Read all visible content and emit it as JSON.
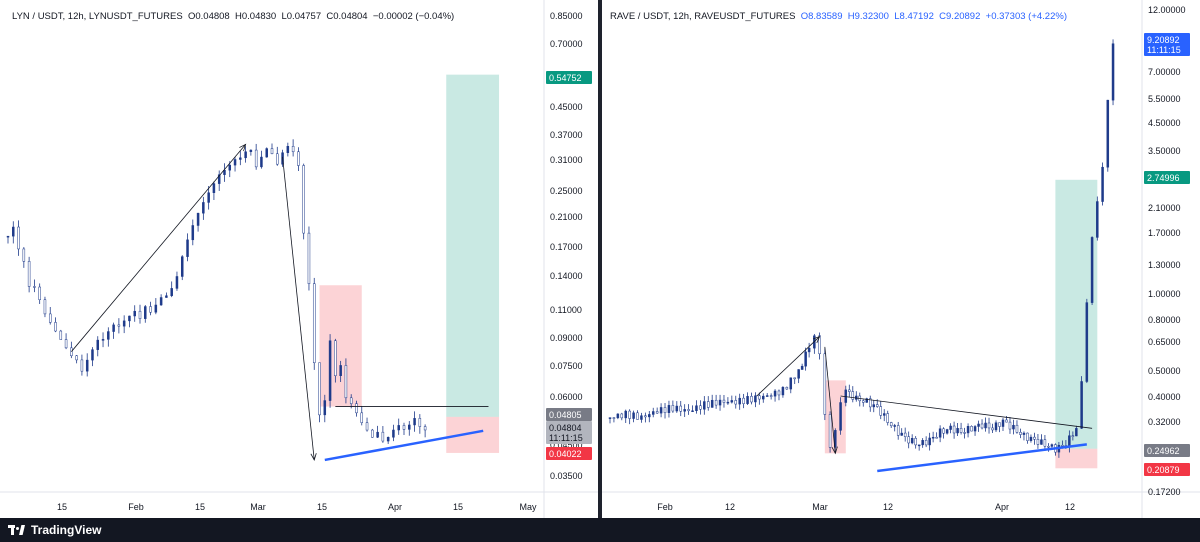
{
  "footer": {
    "brand": "TradingView"
  },
  "chart_data": [
    {
      "type": "candlestick",
      "header": {
        "symbol": "LYN / USDT, 12h, LYNUSDT_FUTURES",
        "open": "O0.04808",
        "high": "H0.04830",
        "low": "L0.04757",
        "close": "C0.04804",
        "change": "−0.00002 (−0.04%)"
      },
      "y_scale": "log",
      "ylim": [
        0.032,
        0.88
      ],
      "y_ticks": [
        "0.85000",
        "0.70000",
        "0.55000",
        "0.45000",
        "0.37000",
        "0.31000",
        "0.25000",
        "0.21000",
        "0.17000",
        "0.14000",
        "0.11000",
        "0.09000",
        "0.07500",
        "0.06000",
        "0.04500",
        "0.03500"
      ],
      "x_ticks": [
        "15",
        "Feb",
        "15",
        "Mar",
        "15",
        "Apr",
        "15",
        "May"
      ],
      "price_badges": [
        {
          "label": "0.54752",
          "color": "#089981"
        },
        {
          "label": "0.04805",
          "color": "#787b86"
        },
        {
          "label": "0.04804",
          "color": "#b2b5be",
          "sub": "11:11:15"
        },
        {
          "label": "0.04022",
          "color": "#f23645"
        }
      ],
      "price_path": [
        [
          0,
          0.19
        ],
        [
          1,
          0.2
        ],
        [
          2,
          0.17
        ],
        [
          3,
          0.155
        ],
        [
          4,
          0.13
        ],
        [
          5,
          0.13
        ],
        [
          6,
          0.12
        ],
        [
          7,
          0.11
        ],
        [
          8,
          0.105
        ],
        [
          9,
          0.1
        ],
        [
          10,
          0.095
        ],
        [
          11,
          0.09
        ],
        [
          12,
          0.085
        ],
        [
          13,
          0.082
        ],
        [
          14,
          0.075
        ],
        [
          15,
          0.08
        ],
        [
          16,
          0.085
        ],
        [
          17,
          0.09
        ],
        [
          18,
          0.09
        ],
        [
          19,
          0.095
        ],
        [
          20,
          0.1
        ],
        [
          21,
          0.1
        ],
        [
          22,
          0.105
        ],
        [
          23,
          0.11
        ],
        [
          24,
          0.115
        ],
        [
          25,
          0.11
        ],
        [
          26,
          0.12
        ],
        [
          27,
          0.115
        ],
        [
          28,
          0.12
        ],
        [
          29,
          0.125
        ],
        [
          30,
          0.125
        ],
        [
          31,
          0.13
        ],
        [
          32,
          0.14
        ],
        [
          33,
          0.16
        ],
        [
          34,
          0.18
        ],
        [
          35,
          0.2
        ],
        [
          36,
          0.22
        ],
        [
          37,
          0.24
        ],
        [
          38,
          0.26
        ],
        [
          39,
          0.28
        ],
        [
          40,
          0.3
        ],
        [
          41,
          0.31
        ],
        [
          42,
          0.32
        ],
        [
          43,
          0.33
        ],
        [
          44,
          0.33
        ],
        [
          45,
          0.34
        ],
        [
          46,
          0.34
        ],
        [
          47,
          0.3
        ],
        [
          48,
          0.32
        ],
        [
          49,
          0.34
        ],
        [
          50,
          0.33
        ],
        [
          51,
          0.31
        ],
        [
          52,
          0.34
        ],
        [
          53,
          0.36
        ],
        [
          54,
          0.35
        ],
        [
          55,
          0.32
        ],
        [
          56,
          0.2
        ],
        [
          57,
          0.14
        ],
        [
          58,
          0.08
        ],
        [
          59,
          0.055
        ],
        [
          60,
          0.06
        ],
        [
          61,
          0.09
        ],
        [
          62,
          0.07
        ],
        [
          63,
          0.075
        ],
        [
          64,
          0.06
        ],
        [
          65,
          0.058
        ],
        [
          66,
          0.055
        ],
        [
          67,
          0.052
        ],
        [
          68,
          0.05
        ],
        [
          69,
          0.048
        ],
        [
          70,
          0.05
        ],
        [
          71,
          0.047
        ],
        [
          72,
          0.048
        ],
        [
          73,
          0.05
        ],
        [
          74,
          0.051
        ],
        [
          75,
          0.049
        ],
        [
          76,
          0.05
        ],
        [
          77,
          0.052
        ],
        [
          78,
          0.049
        ],
        [
          79,
          0.048
        ]
      ],
      "annotations": {
        "up_arrow": {
          "from": [
            12,
            0.085
          ],
          "to": [
            45,
            0.36
          ]
        },
        "down_arrow": {
          "from": [
            52,
            0.33
          ],
          "to": [
            58,
            0.04
          ]
        },
        "stop_zone": {
          "x": [
            59,
            67
          ],
          "y": [
            0.058,
            0.135
          ]
        },
        "target_zone": {
          "x": [
            83,
            93
          ],
          "y": [
            0.054,
            0.585
          ]
        },
        "target_stop": {
          "x": [
            83,
            93
          ],
          "y": [
            0.042,
            0.054
          ]
        },
        "resistance": {
          "x": [
            62,
            91
          ],
          "y": [
            0.058,
            0.058
          ]
        },
        "support": {
          "x": [
            60,
            90
          ],
          "y": [
            0.04,
            0.049
          ]
        }
      }
    },
    {
      "type": "candlestick",
      "header": {
        "symbol": "RAVE / USDT, 12h, RAVEUSDT_FUTURES",
        "open": "O8.83589",
        "high": "H9.32300",
        "low": "L8.47192",
        "close": "C9.20892",
        "change": "+0.37303 (+4.22%)"
      },
      "y_scale": "log",
      "ylim": [
        0.17,
        12.5
      ],
      "y_ticks": [
        "12.00000",
        "7.00000",
        "5.50000",
        "4.50000",
        "3.50000",
        "2.10000",
        "1.70000",
        "1.30000",
        "1.00000",
        "0.80000",
        "0.65000",
        "0.50000",
        "0.40000",
        "0.32000",
        "0.25000",
        "0.17200"
      ],
      "x_ticks": [
        "Feb",
        "12",
        "Mar",
        "12",
        "Apr",
        "12"
      ],
      "price_badges": [
        {
          "label": "9.20892",
          "color": "#2962ff",
          "sub": "11:11:15"
        },
        {
          "label": "2.74996",
          "color": "#089981"
        },
        {
          "label": "0.24962",
          "color": "#787b86"
        },
        {
          "label": "0.20879",
          "color": "#f23645"
        }
      ],
      "price_path": [
        [
          0,
          0.33
        ],
        [
          3,
          0.34
        ],
        [
          6,
          0.33
        ],
        [
          9,
          0.35
        ],
        [
          12,
          0.36
        ],
        [
          15,
          0.35
        ],
        [
          18,
          0.37
        ],
        [
          21,
          0.38
        ],
        [
          24,
          0.38
        ],
        [
          27,
          0.39
        ],
        [
          30,
          0.4
        ],
        [
          33,
          0.42
        ],
        [
          36,
          0.5
        ],
        [
          38,
          0.62
        ],
        [
          39,
          0.7
        ],
        [
          40,
          0.6
        ],
        [
          41,
          0.35
        ],
        [
          42,
          0.26
        ],
        [
          43,
          0.3
        ],
        [
          44,
          0.38
        ],
        [
          45,
          0.42
        ],
        [
          47,
          0.39
        ],
        [
          49,
          0.38
        ],
        [
          51,
          0.36
        ],
        [
          53,
          0.32
        ],
        [
          55,
          0.29
        ],
        [
          57,
          0.27
        ],
        [
          59,
          0.26
        ],
        [
          61,
          0.27
        ],
        [
          63,
          0.29
        ],
        [
          65,
          0.3
        ],
        [
          67,
          0.29
        ],
        [
          69,
          0.3
        ],
        [
          71,
          0.31
        ],
        [
          73,
          0.3
        ],
        [
          75,
          0.32
        ],
        [
          77,
          0.3
        ],
        [
          79,
          0.28
        ],
        [
          81,
          0.27
        ],
        [
          83,
          0.26
        ],
        [
          85,
          0.25
        ],
        [
          87,
          0.26
        ],
        [
          89,
          0.3
        ],
        [
          90,
          0.45
        ],
        [
          91,
          0.9
        ],
        [
          92,
          1.6
        ],
        [
          93,
          2.2
        ],
        [
          94,
          3.0
        ],
        [
          95,
          5.5
        ],
        [
          96,
          9.2
        ]
      ],
      "annotations": {
        "up_arrow": {
          "from": [
            28,
            0.4
          ],
          "to": [
            40,
            0.68
          ]
        },
        "down_arrow": {
          "from": [
            41,
            0.62
          ],
          "to": [
            43,
            0.24
          ]
        },
        "stop_zone": {
          "x": [
            41,
            45
          ],
          "y": [
            0.24,
            0.46
          ]
        },
        "target_zone": {
          "x": [
            85,
            93
          ],
          "y": [
            0.25,
            2.75
          ]
        },
        "target_stop": {
          "x": [
            85,
            93
          ],
          "y": [
            0.21,
            0.25
          ]
        },
        "resistance": {
          "x": [
            44,
            92
          ],
          "y": [
            0.4,
            0.3
          ]
        },
        "support": {
          "x": [
            51,
            91
          ],
          "y": [
            0.205,
            0.26
          ]
        }
      }
    }
  ]
}
